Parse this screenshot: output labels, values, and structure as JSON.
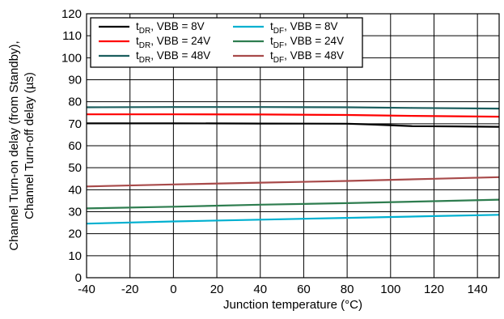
{
  "chart_data": {
    "type": "line",
    "xlabel": "Junction temperature (°C)",
    "ylabel_lines": [
      "Channel Turn-on delay (from Standby),",
      "Channel Turn-off delay (µs)"
    ],
    "xlim": [
      -40,
      150
    ],
    "ylim": [
      0,
      120
    ],
    "x_ticks": [
      -40,
      -20,
      0,
      20,
      40,
      60,
      80,
      100,
      120,
      140
    ],
    "y_ticks": [
      0,
      10,
      20,
      30,
      40,
      50,
      60,
      70,
      80,
      90,
      100,
      110,
      120
    ],
    "grid": true,
    "legend_position": "top-left",
    "series": [
      {
        "sym": "t",
        "sub": "DR",
        "cond": ", VBB = 8V",
        "color": "#000000",
        "x": [
          -40,
          0,
          40,
          80,
          90,
          110,
          130,
          150
        ],
        "y": [
          70.2,
          70.2,
          70.1,
          70.0,
          69.7,
          68.9,
          68.8,
          68.6
        ]
      },
      {
        "sym": "t",
        "sub": "DR",
        "cond": ", VBB = 24V",
        "color": "#ff0000",
        "x": [
          -40,
          0,
          40,
          80,
          110,
          150
        ],
        "y": [
          74.3,
          74.3,
          74.2,
          74.0,
          73.6,
          73.2
        ]
      },
      {
        "sym": "t",
        "sub": "DR",
        "cond": ", VBB = 48V",
        "color": "#1b5e5e",
        "x": [
          -40,
          0,
          40,
          80,
          110,
          150
        ],
        "y": [
          77.5,
          77.6,
          77.6,
          77.5,
          77.2,
          76.9
        ]
      },
      {
        "sym": "t",
        "sub": "DF",
        "cond": ", VBB = 8V",
        "color": "#00b0d0",
        "x": [
          -40,
          0,
          40,
          80,
          120,
          150
        ],
        "y": [
          24.6,
          25.6,
          26.4,
          27.2,
          28.0,
          28.6
        ]
      },
      {
        "sym": "t",
        "sub": "DF",
        "cond": ", VBB = 24V",
        "color": "#2e7d4f",
        "x": [
          -40,
          0,
          40,
          80,
          120,
          150
        ],
        "y": [
          31.5,
          32.3,
          33.2,
          33.9,
          34.8,
          35.5
        ]
      },
      {
        "sym": "t",
        "sub": "DF",
        "cond": ", VBB = 48V",
        "color": "#a84a4a",
        "x": [
          -40,
          0,
          40,
          80,
          120,
          150
        ],
        "y": [
          41.5,
          42.4,
          43.2,
          44.0,
          45.0,
          45.7
        ]
      }
    ]
  }
}
